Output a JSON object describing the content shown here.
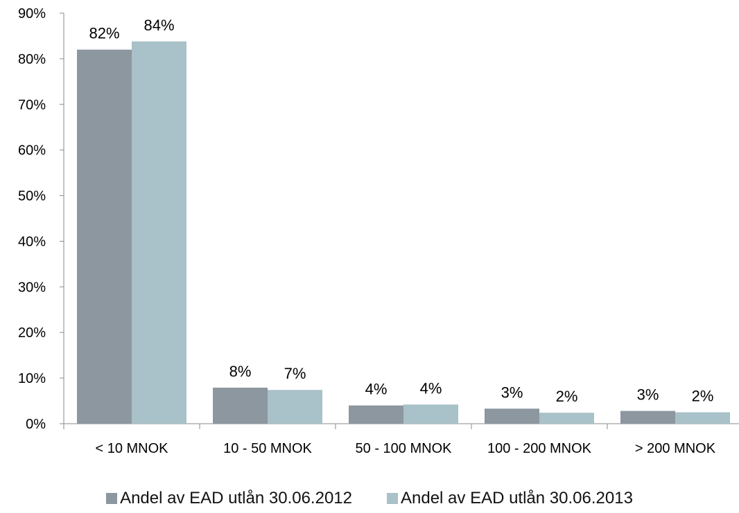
{
  "chart_data": {
    "type": "bar",
    "title": "",
    "xlabel": "",
    "ylabel": "",
    "categories": [
      "< 10 MNOK",
      "10 - 50 MNOK",
      "50 - 100 MNOK",
      "100 - 200 MNOK",
      "> 200 MNOK"
    ],
    "series": [
      {
        "name": "Andel av EAD utlån 30.06.2012",
        "values": [
          82,
          8,
          4,
          3,
          3
        ],
        "labels": [
          "82%",
          "8%",
          "4%",
          "3%",
          "3%"
        ],
        "color": "#8c979f"
      },
      {
        "name": "Andel av EAD utlån 30.06.2013",
        "values": [
          84,
          7,
          4,
          2,
          2
        ],
        "labels": [
          "84%",
          "7%",
          "4%",
          "2%",
          "2%"
        ],
        "color": "#a9c1c8"
      }
    ],
    "bar_values_est": [
      [
        82,
        7.9,
        4.0,
        3.3,
        2.8
      ],
      [
        83.8,
        7.4,
        4.2,
        2.4,
        2.5
      ]
    ],
    "ylim": [
      0,
      90
    ],
    "yticks": [
      "0%",
      "10%",
      "20%",
      "30%",
      "40%",
      "50%",
      "60%",
      "70%",
      "80%",
      "90%"
    ],
    "grid": false,
    "legend_position": "bottom"
  }
}
